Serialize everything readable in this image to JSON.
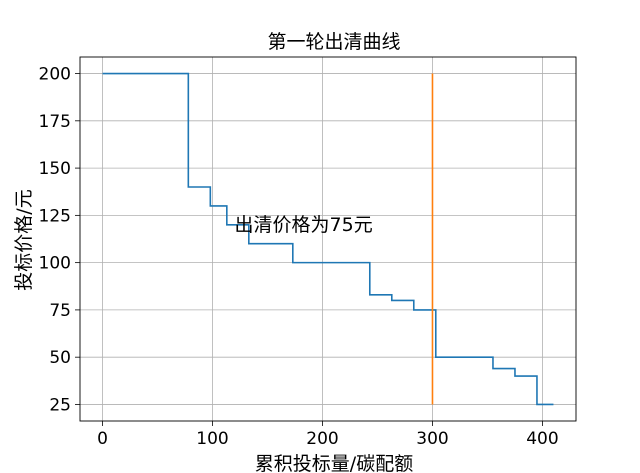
{
  "chart_data": {
    "type": "line",
    "title": "第一轮出清曲线",
    "xlabel": "累积投标量/碳配额",
    "ylabel": "投标价格/元",
    "xlim": [
      -20.5,
      430.5
    ],
    "ylim": [
      16.25,
      208.75
    ],
    "xticks": [
      0,
      100,
      200,
      300,
      400
    ],
    "yticks": [
      25,
      50,
      75,
      100,
      125,
      150,
      175,
      200
    ],
    "grid": true,
    "series": [
      {
        "color": "#1f77b4",
        "drawstyle": "steps-post",
        "x": [
          0,
          78,
          98,
          113,
          133,
          173,
          243,
          263,
          283,
          303,
          355,
          375,
          395,
          410
        ],
        "y": [
          200,
          140,
          130,
          120,
          110,
          100,
          83,
          80,
          75,
          50,
          44,
          40,
          25,
          25
        ]
      },
      {
        "color": "#ff7f0e",
        "drawstyle": "default",
        "x": [
          300,
          300
        ],
        "y": [
          25,
          200
        ]
      }
    ],
    "annotations": [
      {
        "text": "出清价格为75元",
        "x": 120,
        "y": 120
      }
    ]
  }
}
